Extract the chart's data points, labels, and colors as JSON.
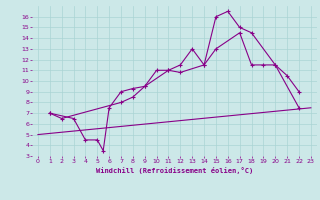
{
  "bg_color": "#cce8e8",
  "line_color": "#880088",
  "grid_color": "#aad4d4",
  "xlabel": "Windchill (Refroidissement éolien,°C)",
  "xlim": [
    -0.5,
    23.5
  ],
  "ylim": [
    3,
    17
  ],
  "xticks": [
    0,
    1,
    2,
    3,
    4,
    5,
    6,
    7,
    8,
    9,
    10,
    11,
    12,
    13,
    14,
    15,
    16,
    17,
    18,
    19,
    20,
    21,
    22,
    23
  ],
  "yticks": [
    3,
    4,
    5,
    6,
    7,
    8,
    9,
    10,
    11,
    12,
    13,
    14,
    15,
    16
  ],
  "line1_x": [
    1,
    3,
    4,
    5,
    5.5,
    6,
    7,
    8,
    9,
    10,
    11,
    12,
    13,
    14,
    15,
    16,
    17,
    18,
    20,
    21,
    22
  ],
  "line1_y": [
    7.0,
    6.5,
    4.5,
    4.5,
    3.5,
    7.5,
    9.0,
    9.3,
    9.5,
    11.0,
    11.0,
    11.5,
    13.0,
    11.5,
    16.0,
    16.5,
    15.0,
    14.5,
    11.5,
    10.5,
    9.0
  ],
  "line2_x": [
    0,
    23
  ],
  "line2_y": [
    5.0,
    7.5
  ],
  "line3_x": [
    1,
    2,
    7,
    8,
    9,
    11,
    12,
    14,
    15,
    17,
    18,
    19,
    20,
    22
  ],
  "line3_y": [
    7.0,
    6.5,
    8.0,
    8.5,
    9.5,
    11.0,
    10.8,
    11.5,
    13.0,
    14.5,
    11.5,
    11.5,
    11.5,
    7.5
  ]
}
